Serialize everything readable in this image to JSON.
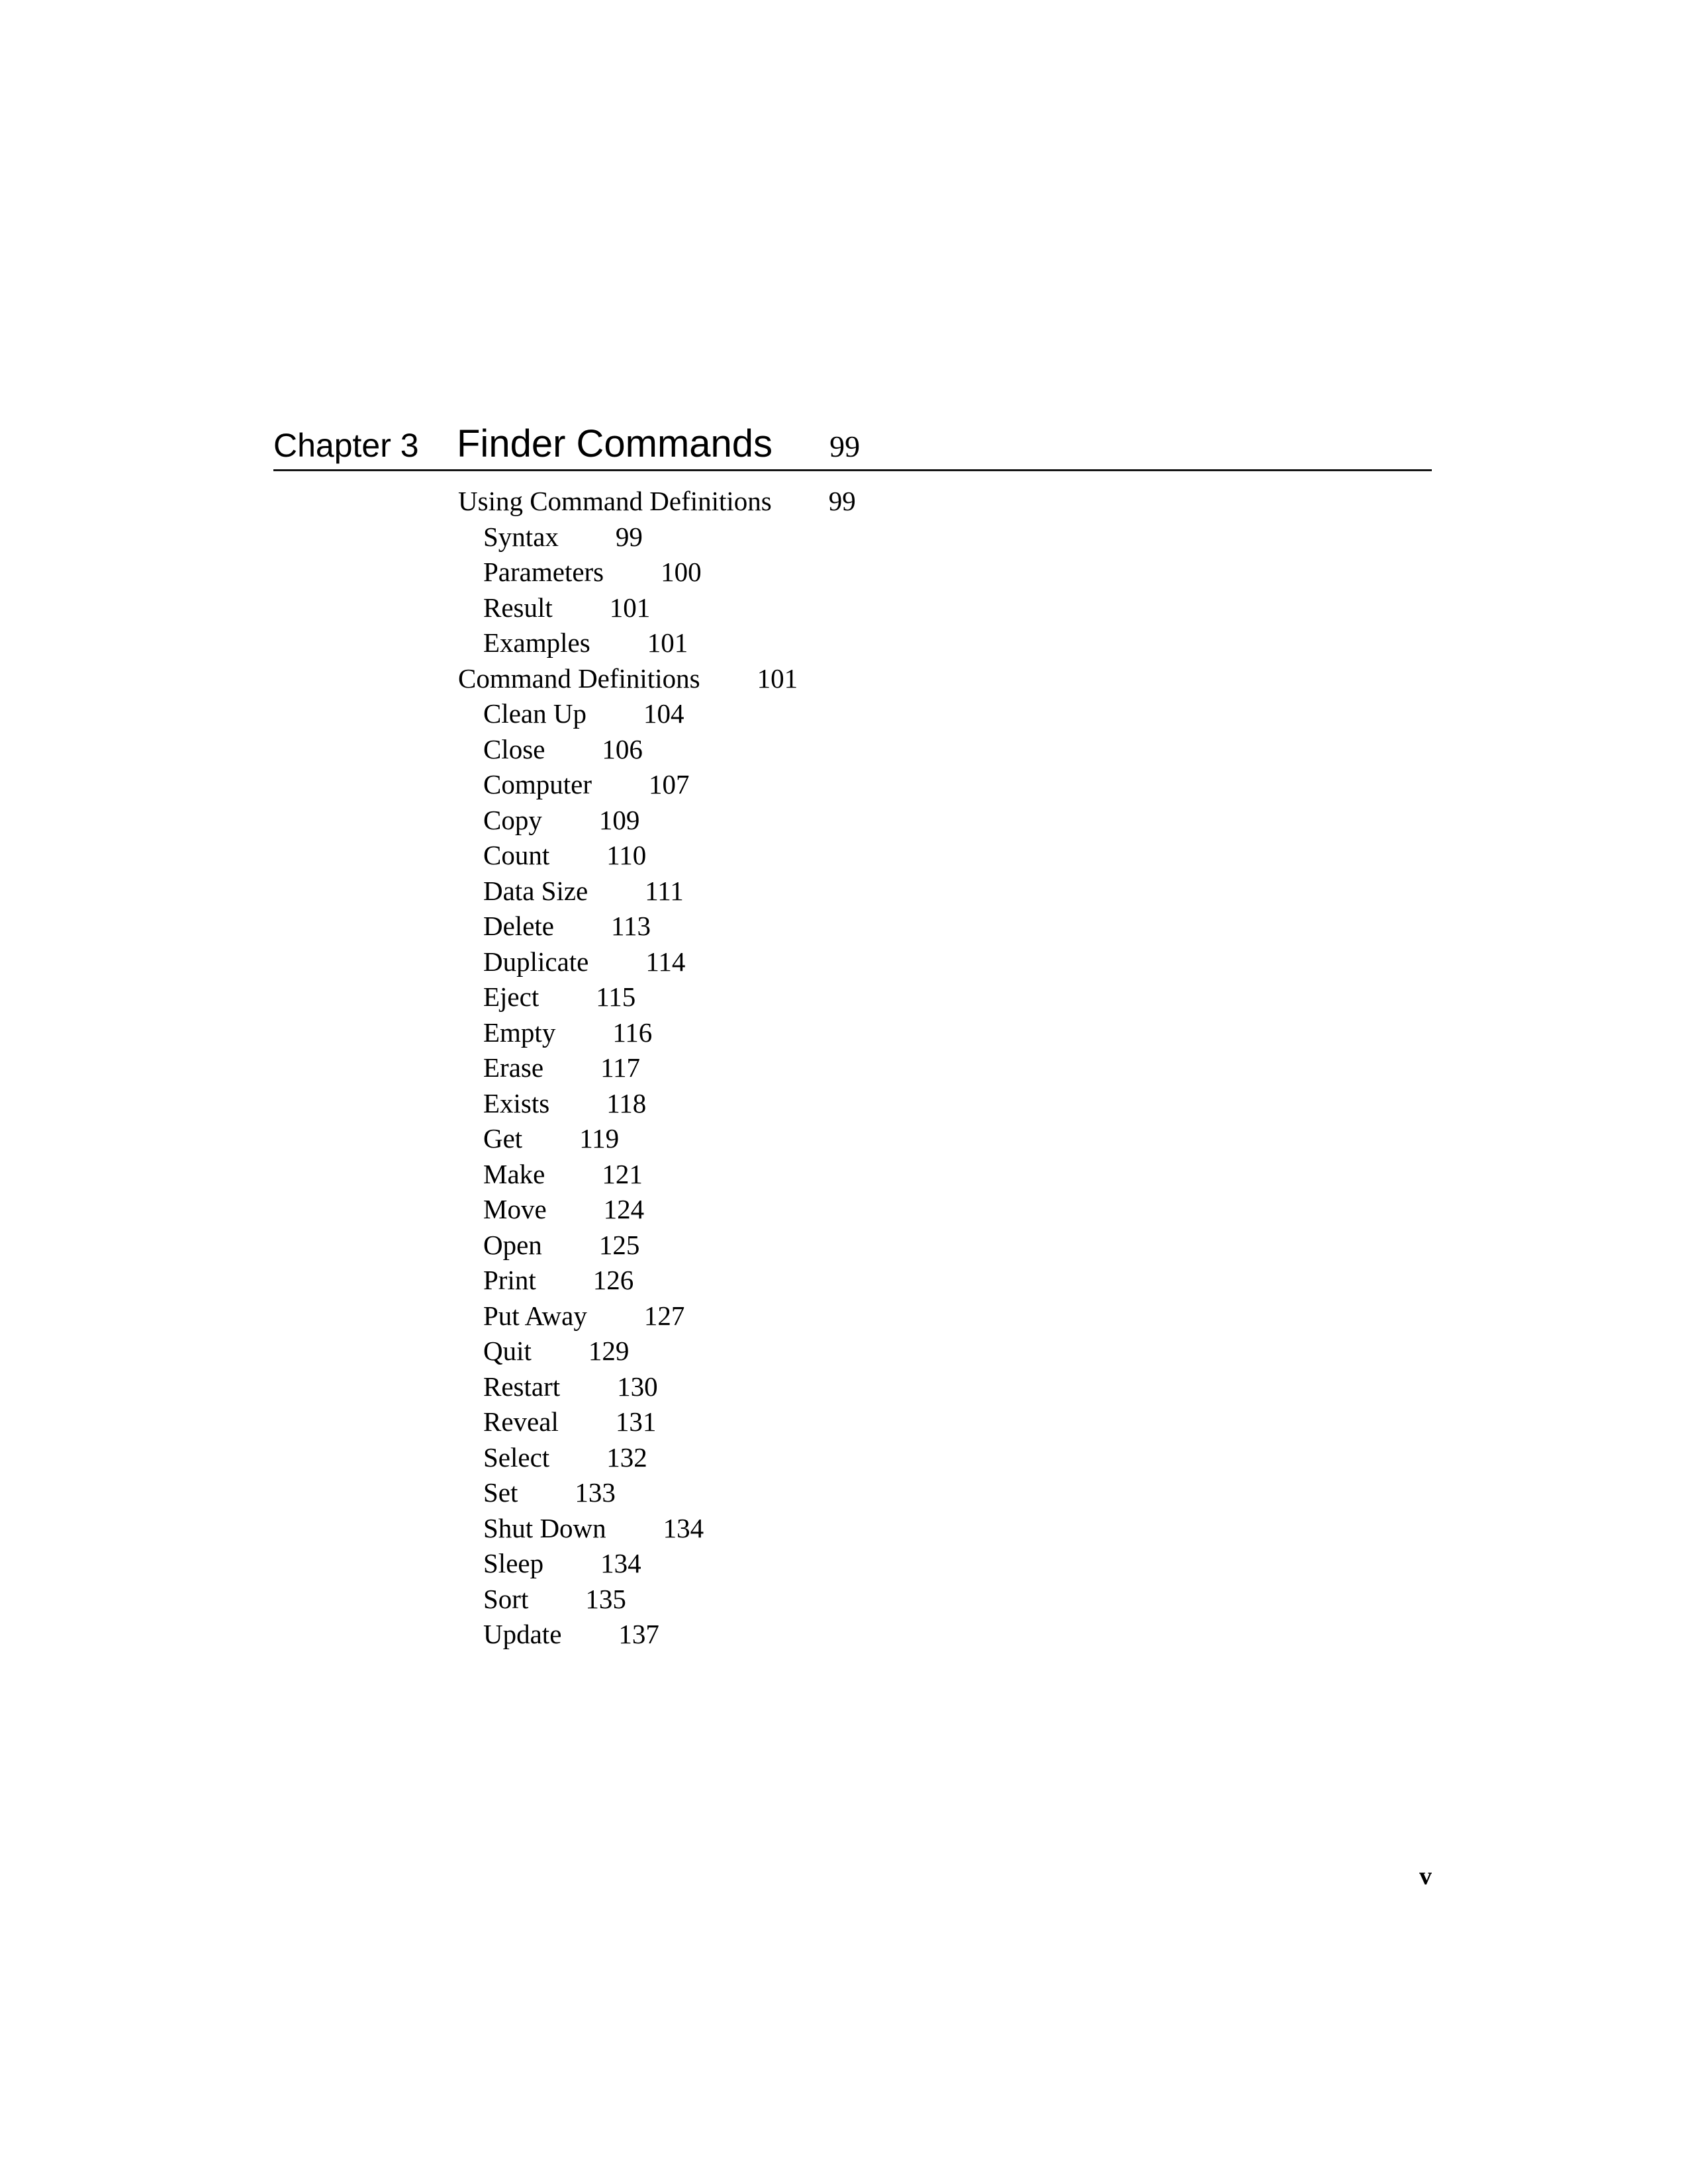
{
  "header": {
    "chapter_label": "Chapter 3",
    "chapter_title": "Finder Commands",
    "chapter_page": "99"
  },
  "toc": {
    "entries": [
      {
        "label": "Using Command Definitions",
        "page": "99",
        "level": 1
      },
      {
        "label": "Syntax",
        "page": "99",
        "level": 2
      },
      {
        "label": "Parameters",
        "page": "100",
        "level": 2
      },
      {
        "label": "Result",
        "page": "101",
        "level": 2
      },
      {
        "label": "Examples",
        "page": "101",
        "level": 2
      },
      {
        "label": "Command Definitions",
        "page": "101",
        "level": 1
      },
      {
        "label": "Clean Up",
        "page": "104",
        "level": 2
      },
      {
        "label": "Close",
        "page": "106",
        "level": 2
      },
      {
        "label": "Computer",
        "page": "107",
        "level": 2
      },
      {
        "label": "Copy",
        "page": "109",
        "level": 2
      },
      {
        "label": "Count",
        "page": "110",
        "level": 2
      },
      {
        "label": "Data Size",
        "page": "111",
        "level": 2
      },
      {
        "label": "Delete",
        "page": "113",
        "level": 2
      },
      {
        "label": "Duplicate",
        "page": "114",
        "level": 2
      },
      {
        "label": "Eject",
        "page": "115",
        "level": 2
      },
      {
        "label": "Empty",
        "page": "116",
        "level": 2
      },
      {
        "label": "Erase",
        "page": "117",
        "level": 2
      },
      {
        "label": "Exists",
        "page": "118",
        "level": 2
      },
      {
        "label": "Get",
        "page": "119",
        "level": 2
      },
      {
        "label": "Make",
        "page": "121",
        "level": 2
      },
      {
        "label": "Move",
        "page": "124",
        "level": 2
      },
      {
        "label": "Open",
        "page": "125",
        "level": 2
      },
      {
        "label": "Print",
        "page": "126",
        "level": 2
      },
      {
        "label": "Put Away",
        "page": "127",
        "level": 2
      },
      {
        "label": "Quit",
        "page": "129",
        "level": 2
      },
      {
        "label": "Restart",
        "page": "130",
        "level": 2
      },
      {
        "label": "Reveal",
        "page": "131",
        "level": 2
      },
      {
        "label": "Select",
        "page": "132",
        "level": 2
      },
      {
        "label": "Set",
        "page": "133",
        "level": 2
      },
      {
        "label": "Shut Down",
        "page": "134",
        "level": 2
      },
      {
        "label": "Sleep",
        "page": "134",
        "level": 2
      },
      {
        "label": "Sort",
        "page": "135",
        "level": 2
      },
      {
        "label": "Update",
        "page": "137",
        "level": 2
      }
    ]
  },
  "footer": {
    "page_number": "v"
  }
}
